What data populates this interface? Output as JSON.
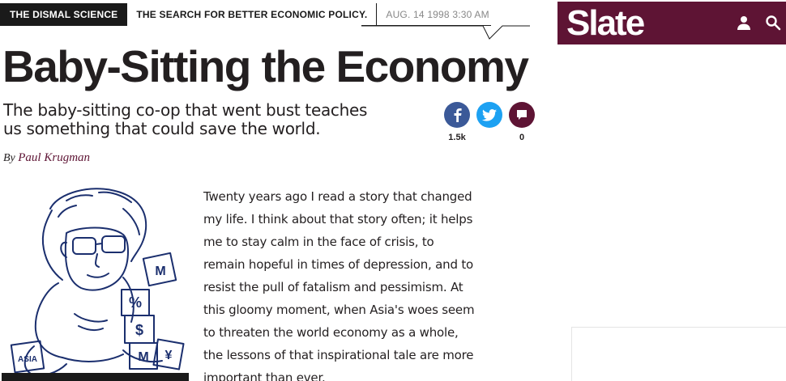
{
  "rubric": {
    "section": "THE DISMAL SCIENCE",
    "tagline": "THE SEARCH FOR BETTER ECONOMIC POLICY.",
    "date": "AUG. 14 1998 3:30 AM"
  },
  "article": {
    "headline": "Baby-Sitting the Economy",
    "dek": "The baby-sitting co-op that went bust teaches us something that could save the world.",
    "byline_prefix": "By",
    "author": "Paul Krugman",
    "body": "Twenty years ago I read a story that changed my life. I think about that story often; it helps me to stay calm in the face of crisis, to remain hopeful in times of depression, and to resist the pull of fatalism and pessimism. At this gloomy moment, when Asia's woes seem to threaten the world economy as a whole, the lessons of that inspirational tale are more important than ever."
  },
  "share": {
    "facebook_count": "1.5k",
    "comments_count": "0"
  },
  "header": {
    "logo": "Slate",
    "user_icon": "user-icon",
    "search_icon": "search-icon"
  },
  "illustration": {
    "blocks": [
      "%",
      "$",
      "¥",
      "M",
      "ASIA",
      "M"
    ]
  },
  "colors": {
    "brand": "#5e1434",
    "facebook": "#3b5998",
    "twitter": "#1da1f2",
    "text": "#231f20"
  }
}
